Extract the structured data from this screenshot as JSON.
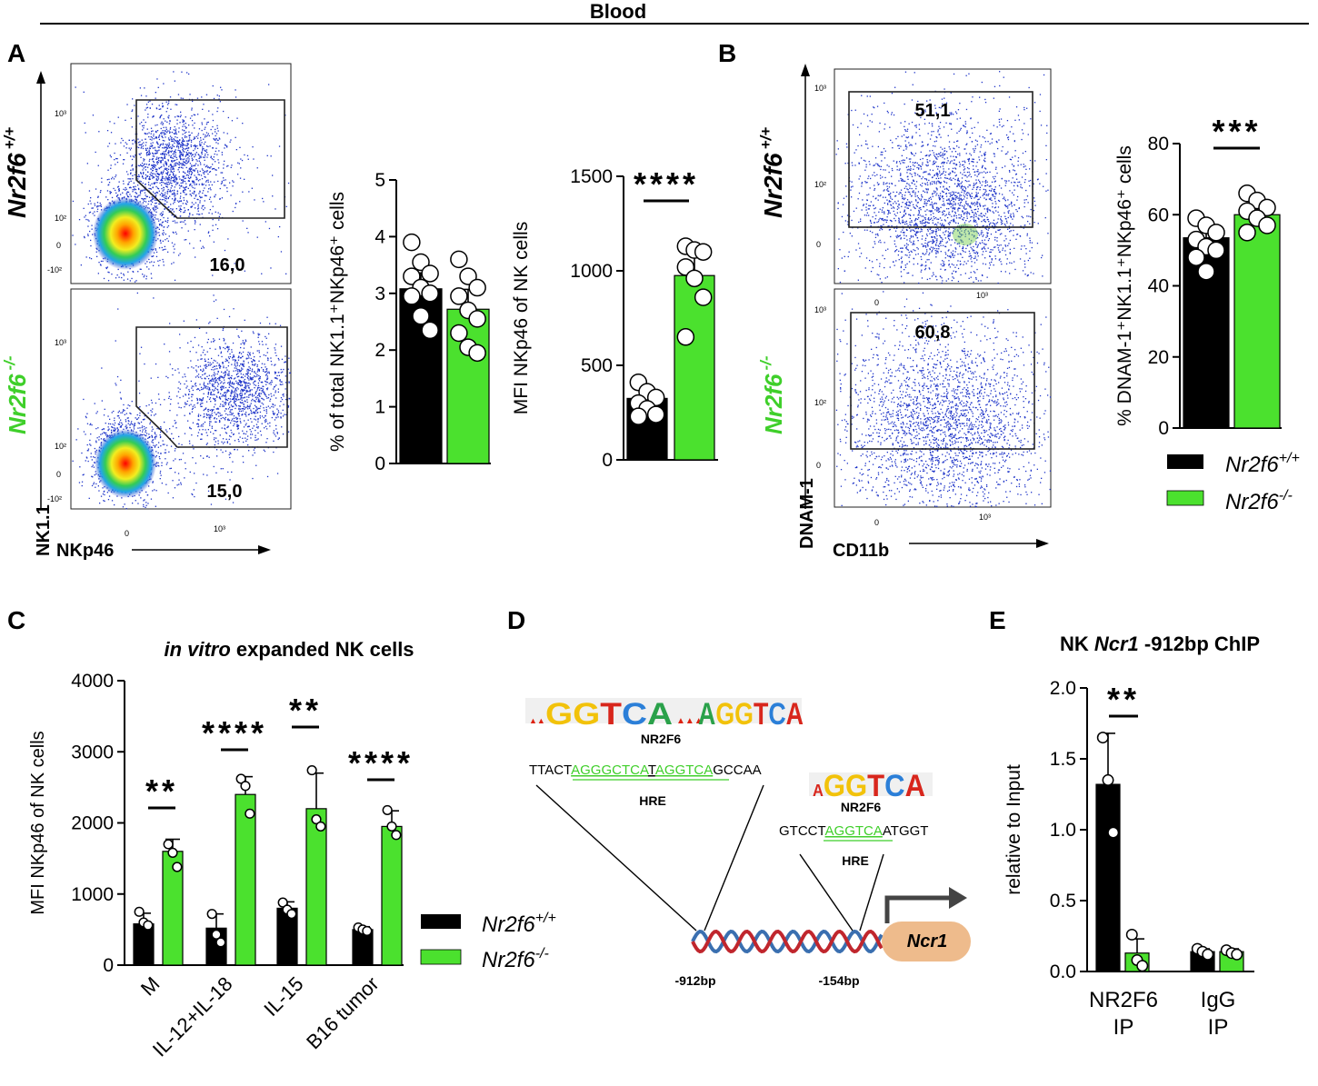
{
  "header": {
    "title": "Blood"
  },
  "colors": {
    "wt": "#000000",
    "ko": "#4be12e",
    "dot_blue": "#1f35c9",
    "dna_red": "#c0262d",
    "dna_blue": "#3a6fb0",
    "ncr1_box": "#eebb8c"
  },
  "legend": {
    "wt": "Nr2f6",
    "wt_sup": "+/+",
    "ko": "Nr2f6",
    "ko_sup": "-/-"
  },
  "panel_a": {
    "letter": "A",
    "row_wt_label": "Nr2f6",
    "row_wt_sup": "+/+",
    "row_ko_label": "Nr2f6",
    "row_ko_sup": "-/-",
    "gate_wt": "16,0",
    "gate_ko": "15,0",
    "y_axis_label": "NK1.1",
    "x_axis_label": "NKp46",
    "y_ticks": [
      "10³",
      "10²",
      "0",
      "-10²"
    ],
    "x_ticks": [
      "0",
      "10³"
    ]
  },
  "panel_b": {
    "letter": "B",
    "gate_wt": "51,1",
    "gate_ko": "60,8",
    "y_axis_label": "DNAM-1",
    "x_axis_label": "CD11b",
    "y_ticks": [
      "10³",
      "10²",
      "0"
    ],
    "x_ticks": [
      "0",
      "10³"
    ]
  },
  "panel_c": {
    "letter": "C",
    "title_italic": "in vitro",
    "title_rest": " expanded NK cells"
  },
  "panel_d": {
    "letter": "D",
    "motif1": "NR2F6",
    "motif2": "NR2F6",
    "seq1_a": "TTACT",
    "seq1_b": "AGGGCTCA",
    "seq1_c": "T",
    "seq1_d": "AGGTCA",
    "seq1_e": "GCCAA",
    "seq2_a": "GTCCT",
    "seq2_b": "AGGTCA",
    "seq2_c": "ATGGT",
    "hre1": "HRE",
    "hre2": "HRE",
    "pos1": "-912bp",
    "pos2": "-154bp",
    "gene": "Ncr1"
  },
  "panel_e": {
    "letter": "E",
    "title_a": "NK ",
    "title_b": "Ncr1",
    "title_c": " -912bp ChIP"
  },
  "chart_data": [
    {
      "id": "a_pct",
      "type": "bar",
      "title": "",
      "ylabel": "% of total NK1.1⁺NKp46⁺ cells",
      "categories": [
        "Nr2f6+/+",
        "Nr2f6-/-"
      ],
      "values": [
        3.08,
        2.72
      ],
      "errors": [
        0.28,
        0.35
      ],
      "ylim": [
        0,
        5
      ],
      "yticks": [
        0,
        1,
        2,
        3,
        4,
        5
      ],
      "points": [
        [
          3.9,
          3.55,
          3.35,
          3.3,
          3.1,
          3.0,
          2.95,
          2.6,
          2.35
        ],
        [
          3.6,
          3.3,
          3.1,
          2.95,
          2.7,
          2.55,
          2.3,
          2.05,
          1.95
        ]
      ]
    },
    {
      "id": "a_mfi",
      "type": "bar",
      "ylabel": "MFI NKp46 of NK cells",
      "categories": [
        "Nr2f6+/+",
        "Nr2f6-/-"
      ],
      "values": [
        325,
        975
      ],
      "errors": [
        45,
        110
      ],
      "ylim": [
        0,
        1500
      ],
      "yticks": [
        0,
        500,
        1000,
        1500
      ],
      "significance": "****",
      "points": [
        [
          410,
          360,
          330,
          300,
          270,
          240,
          230
        ],
        [
          1130,
          1110,
          1100,
          1020,
          960,
          860,
          650
        ]
      ]
    },
    {
      "id": "b_dnam",
      "type": "bar",
      "ylabel": "% DNAM-1⁺NK1.1⁺NKp46⁺ cells",
      "categories": [
        "Nr2f6+/+",
        "Nr2f6-/-"
      ],
      "values": [
        53.5,
        60
      ],
      "errors": [
        3.5,
        2.8
      ],
      "ylim": [
        0,
        80
      ],
      "yticks": [
        0,
        20,
        40,
        60,
        80
      ],
      "significance": "***",
      "points": [
        [
          59,
          57,
          55,
          53,
          51,
          50,
          48,
          44
        ],
        [
          66,
          64,
          62,
          61,
          59,
          57,
          55
        ]
      ]
    },
    {
      "id": "c_mfi",
      "type": "bar",
      "title": "in vitro expanded NK cells",
      "ylabel": "MFI NKp46 of NK cells",
      "categories": [
        "M",
        "IL-12+IL-18",
        "IL-15",
        "B16 tumor"
      ],
      "ylim": [
        0,
        4000
      ],
      "yticks": [
        0,
        1000,
        2000,
        3000,
        4000
      ],
      "series": [
        {
          "name": "Nr2f6+/+",
          "values": [
            580,
            520,
            800,
            500
          ],
          "errors": [
            150,
            200,
            90,
            40
          ],
          "points": [
            [
              750,
              600,
              560
            ],
            [
              720,
              430,
              320
            ],
            [
              880,
              780,
              720
            ],
            [
              530,
              500,
              480
            ]
          ]
        },
        {
          "name": "Nr2f6-/-",
          "values": [
            1600,
            2400,
            2200,
            1950
          ],
          "errors": [
            170,
            250,
            500,
            220
          ],
          "points": [
            [
              1700,
              1580,
              1380
            ],
            [
              2620,
              2520,
              2130
            ],
            [
              2740,
              2050,
              1950
            ],
            [
              2180,
              1950,
              1830
            ]
          ]
        }
      ],
      "significance": [
        "**",
        "****",
        "**",
        "****"
      ]
    },
    {
      "id": "e_chip",
      "type": "bar",
      "ylabel": "relative to Input",
      "categories": [
        "NR2F6\nIP",
        "IgG\nIP"
      ],
      "ylim": [
        0,
        2.0
      ],
      "yticks": [
        0.0,
        0.5,
        1.0,
        1.5,
        2.0
      ],
      "ytick_labels": [
        "0.0",
        "0.5",
        "1.0",
        "1.5",
        "2.0"
      ],
      "series": [
        {
          "name": "Nr2f6+/+",
          "values": [
            1.32,
            0.14
          ],
          "errors": [
            0.36,
            0.02
          ],
          "points": [
            [
              1.65,
              1.35,
              0.98
            ],
            [
              0.16,
              0.14,
              0.12
            ]
          ]
        },
        {
          "name": "Nr2f6-/-",
          "values": [
            0.13,
            0.14
          ],
          "errors": [
            0.1,
            0.02
          ],
          "points": [
            [
              0.26,
              0.08,
              0.04
            ],
            [
              0.15,
              0.13,
              0.12
            ]
          ]
        }
      ],
      "significance": [
        "**",
        ""
      ]
    }
  ]
}
